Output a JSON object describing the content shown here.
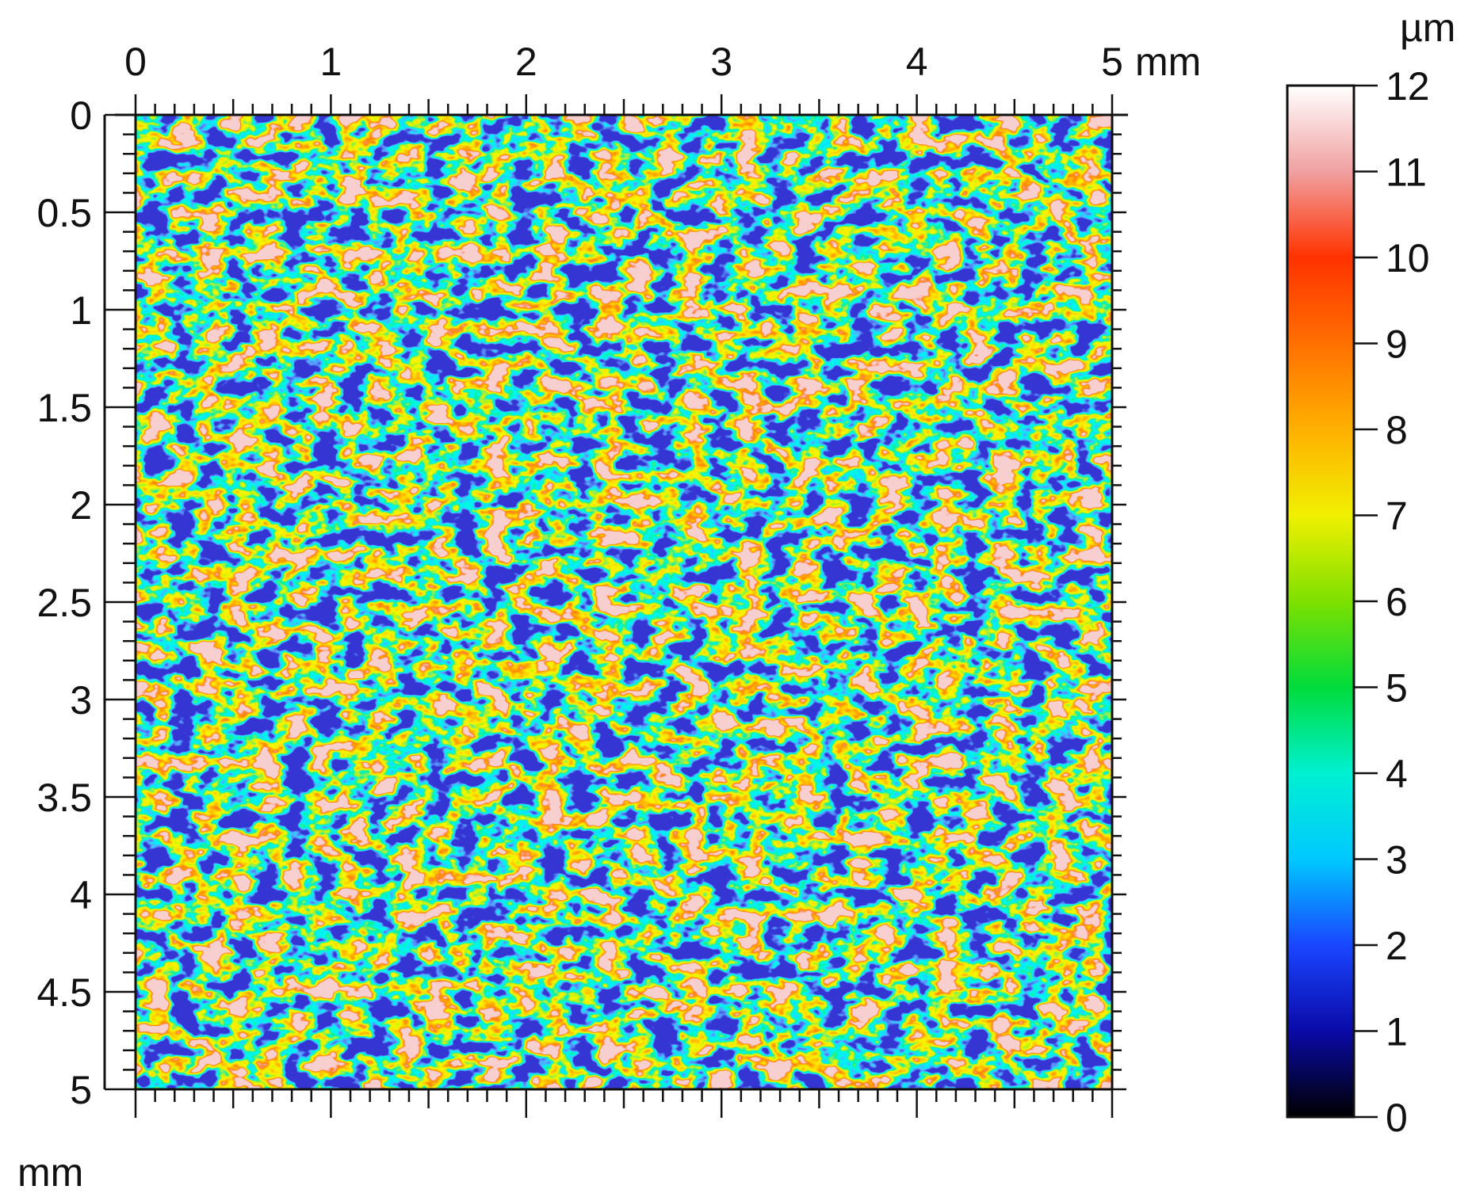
{
  "chart_data": {
    "type": "heatmap",
    "title": "",
    "x_axis": {
      "unit": "mm",
      "range": [
        0,
        5
      ],
      "tick_labels": [
        "0",
        "1",
        "2",
        "3",
        "4",
        "5"
      ],
      "position": "top"
    },
    "y_axis": {
      "unit": "mm",
      "range": [
        0,
        5
      ],
      "tick_labels": [
        "0",
        "0.5",
        "1",
        "1.5",
        "2",
        "2.5",
        "3",
        "3.5",
        "4",
        "4.5",
        "5"
      ],
      "inverted": true
    },
    "colorbar": {
      "unit": "µm",
      "range": [
        0,
        12
      ],
      "tick_labels": [
        "0",
        "1",
        "2",
        "3",
        "4",
        "5",
        "6",
        "7",
        "8",
        "9",
        "10",
        "11",
        "12"
      ],
      "colormap": [
        {
          "value": 0,
          "color": "#000000"
        },
        {
          "value": 1,
          "color": "#0a0aa8"
        },
        {
          "value": 2,
          "color": "#1a46ff"
        },
        {
          "value": 3,
          "color": "#00c8ff"
        },
        {
          "value": 4,
          "color": "#00f0d2"
        },
        {
          "value": 5,
          "color": "#00dc3c"
        },
        {
          "value": 6,
          "color": "#7ee000"
        },
        {
          "value": 7,
          "color": "#f0f000"
        },
        {
          "value": 8,
          "color": "#ffb000"
        },
        {
          "value": 9,
          "color": "#ff7000"
        },
        {
          "value": 10,
          "color": "#ff3200"
        },
        {
          "value": 11,
          "color": "#f0a0a0"
        },
        {
          "value": 12,
          "color": "#ffffff"
        }
      ]
    },
    "height_map_summary": {
      "typical_range_um": [
        1,
        11
      ],
      "dominant_levels_um": [
        4,
        5,
        6,
        7
      ],
      "pattern": "random isotropic roughness"
    }
  }
}
